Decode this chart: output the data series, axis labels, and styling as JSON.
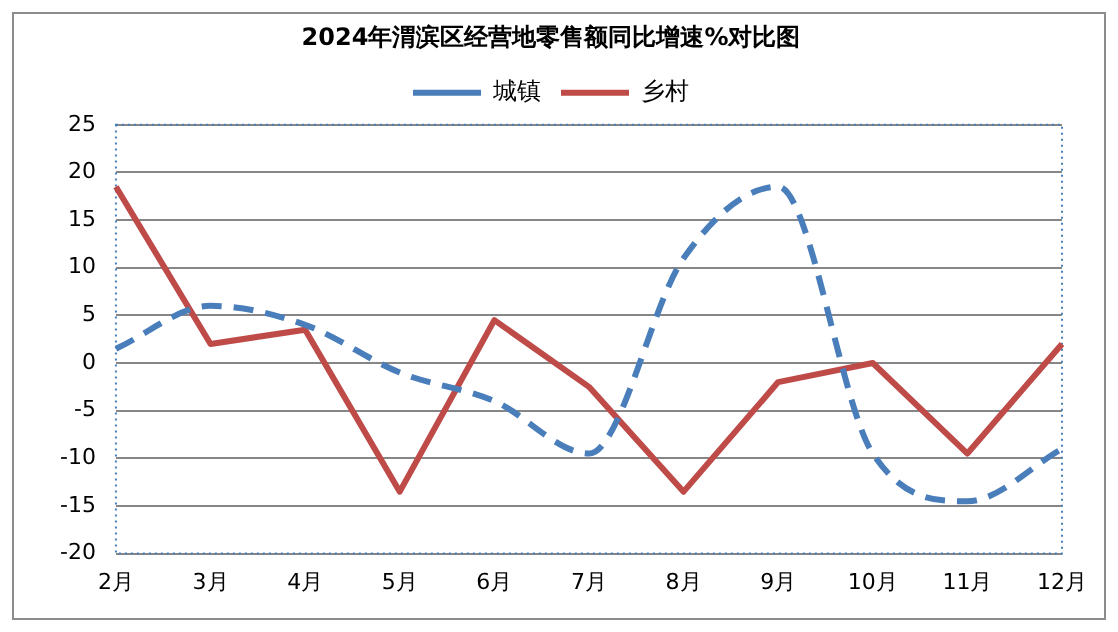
{
  "chart_data": {
    "type": "line",
    "title": "2024年渭滨区经营地零售额同比增速%对比图",
    "categories": [
      "2月",
      "3月",
      "4月",
      "5月",
      "6月",
      "7月",
      "8月",
      "9月",
      "10月",
      "11月",
      "12月"
    ],
    "series": [
      {
        "name": "城镇",
        "color": "#4a7ebb",
        "line_style": "dashed",
        "values": [
          1.5,
          6,
          4,
          -1,
          -4,
          -9.5,
          11,
          18.5,
          -9.5,
          -14.5,
          -9
        ]
      },
      {
        "name": "乡村",
        "color": "#be4b48",
        "line_style": "solid",
        "values": [
          18.5,
          2,
          3.5,
          -13.5,
          4.5,
          -2.5,
          -13.5,
          -2,
          0,
          -9.5,
          2
        ]
      }
    ],
    "ylim": [
      -20,
      25
    ],
    "yticks": [
      -20,
      -15,
      -10,
      -5,
      0,
      5,
      10,
      15,
      20,
      25
    ],
    "grid": "y",
    "legend": "top",
    "marker": "none"
  }
}
